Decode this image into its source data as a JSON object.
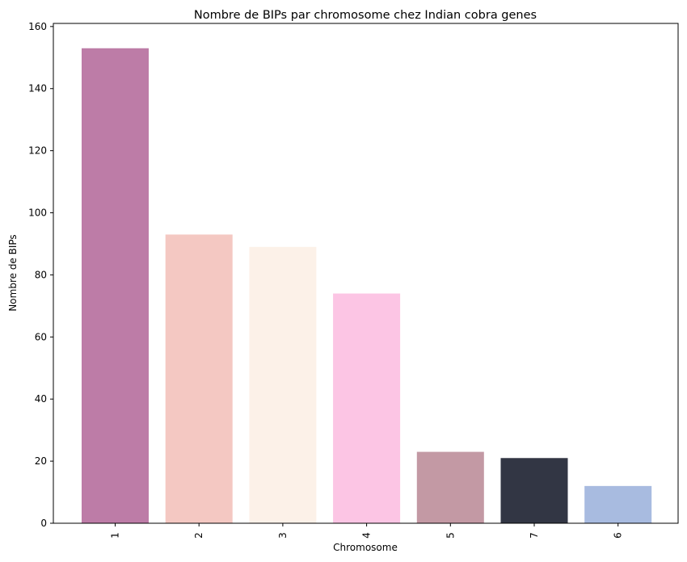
{
  "chart_data": {
    "type": "bar",
    "title": "Nombre de BIPs par chromosome chez Indian cobra genes",
    "xlabel": "Chromosome",
    "ylabel": "Nombre de BIPs",
    "categories": [
      "1",
      "2",
      "3",
      "4",
      "5",
      "7",
      "6"
    ],
    "values": [
      153,
      93,
      89,
      74,
      23,
      21,
      12
    ],
    "colors": [
      "#bd7ca7",
      "#f4c8c2",
      "#fcf1e8",
      "#fcc5e4",
      "#c399a4",
      "#323644",
      "#a8bbe0"
    ],
    "ylim": [
      0,
      161
    ],
    "yticks": [
      0,
      20,
      40,
      60,
      80,
      100,
      120,
      140,
      160
    ],
    "grid": false,
    "legend": "none"
  }
}
